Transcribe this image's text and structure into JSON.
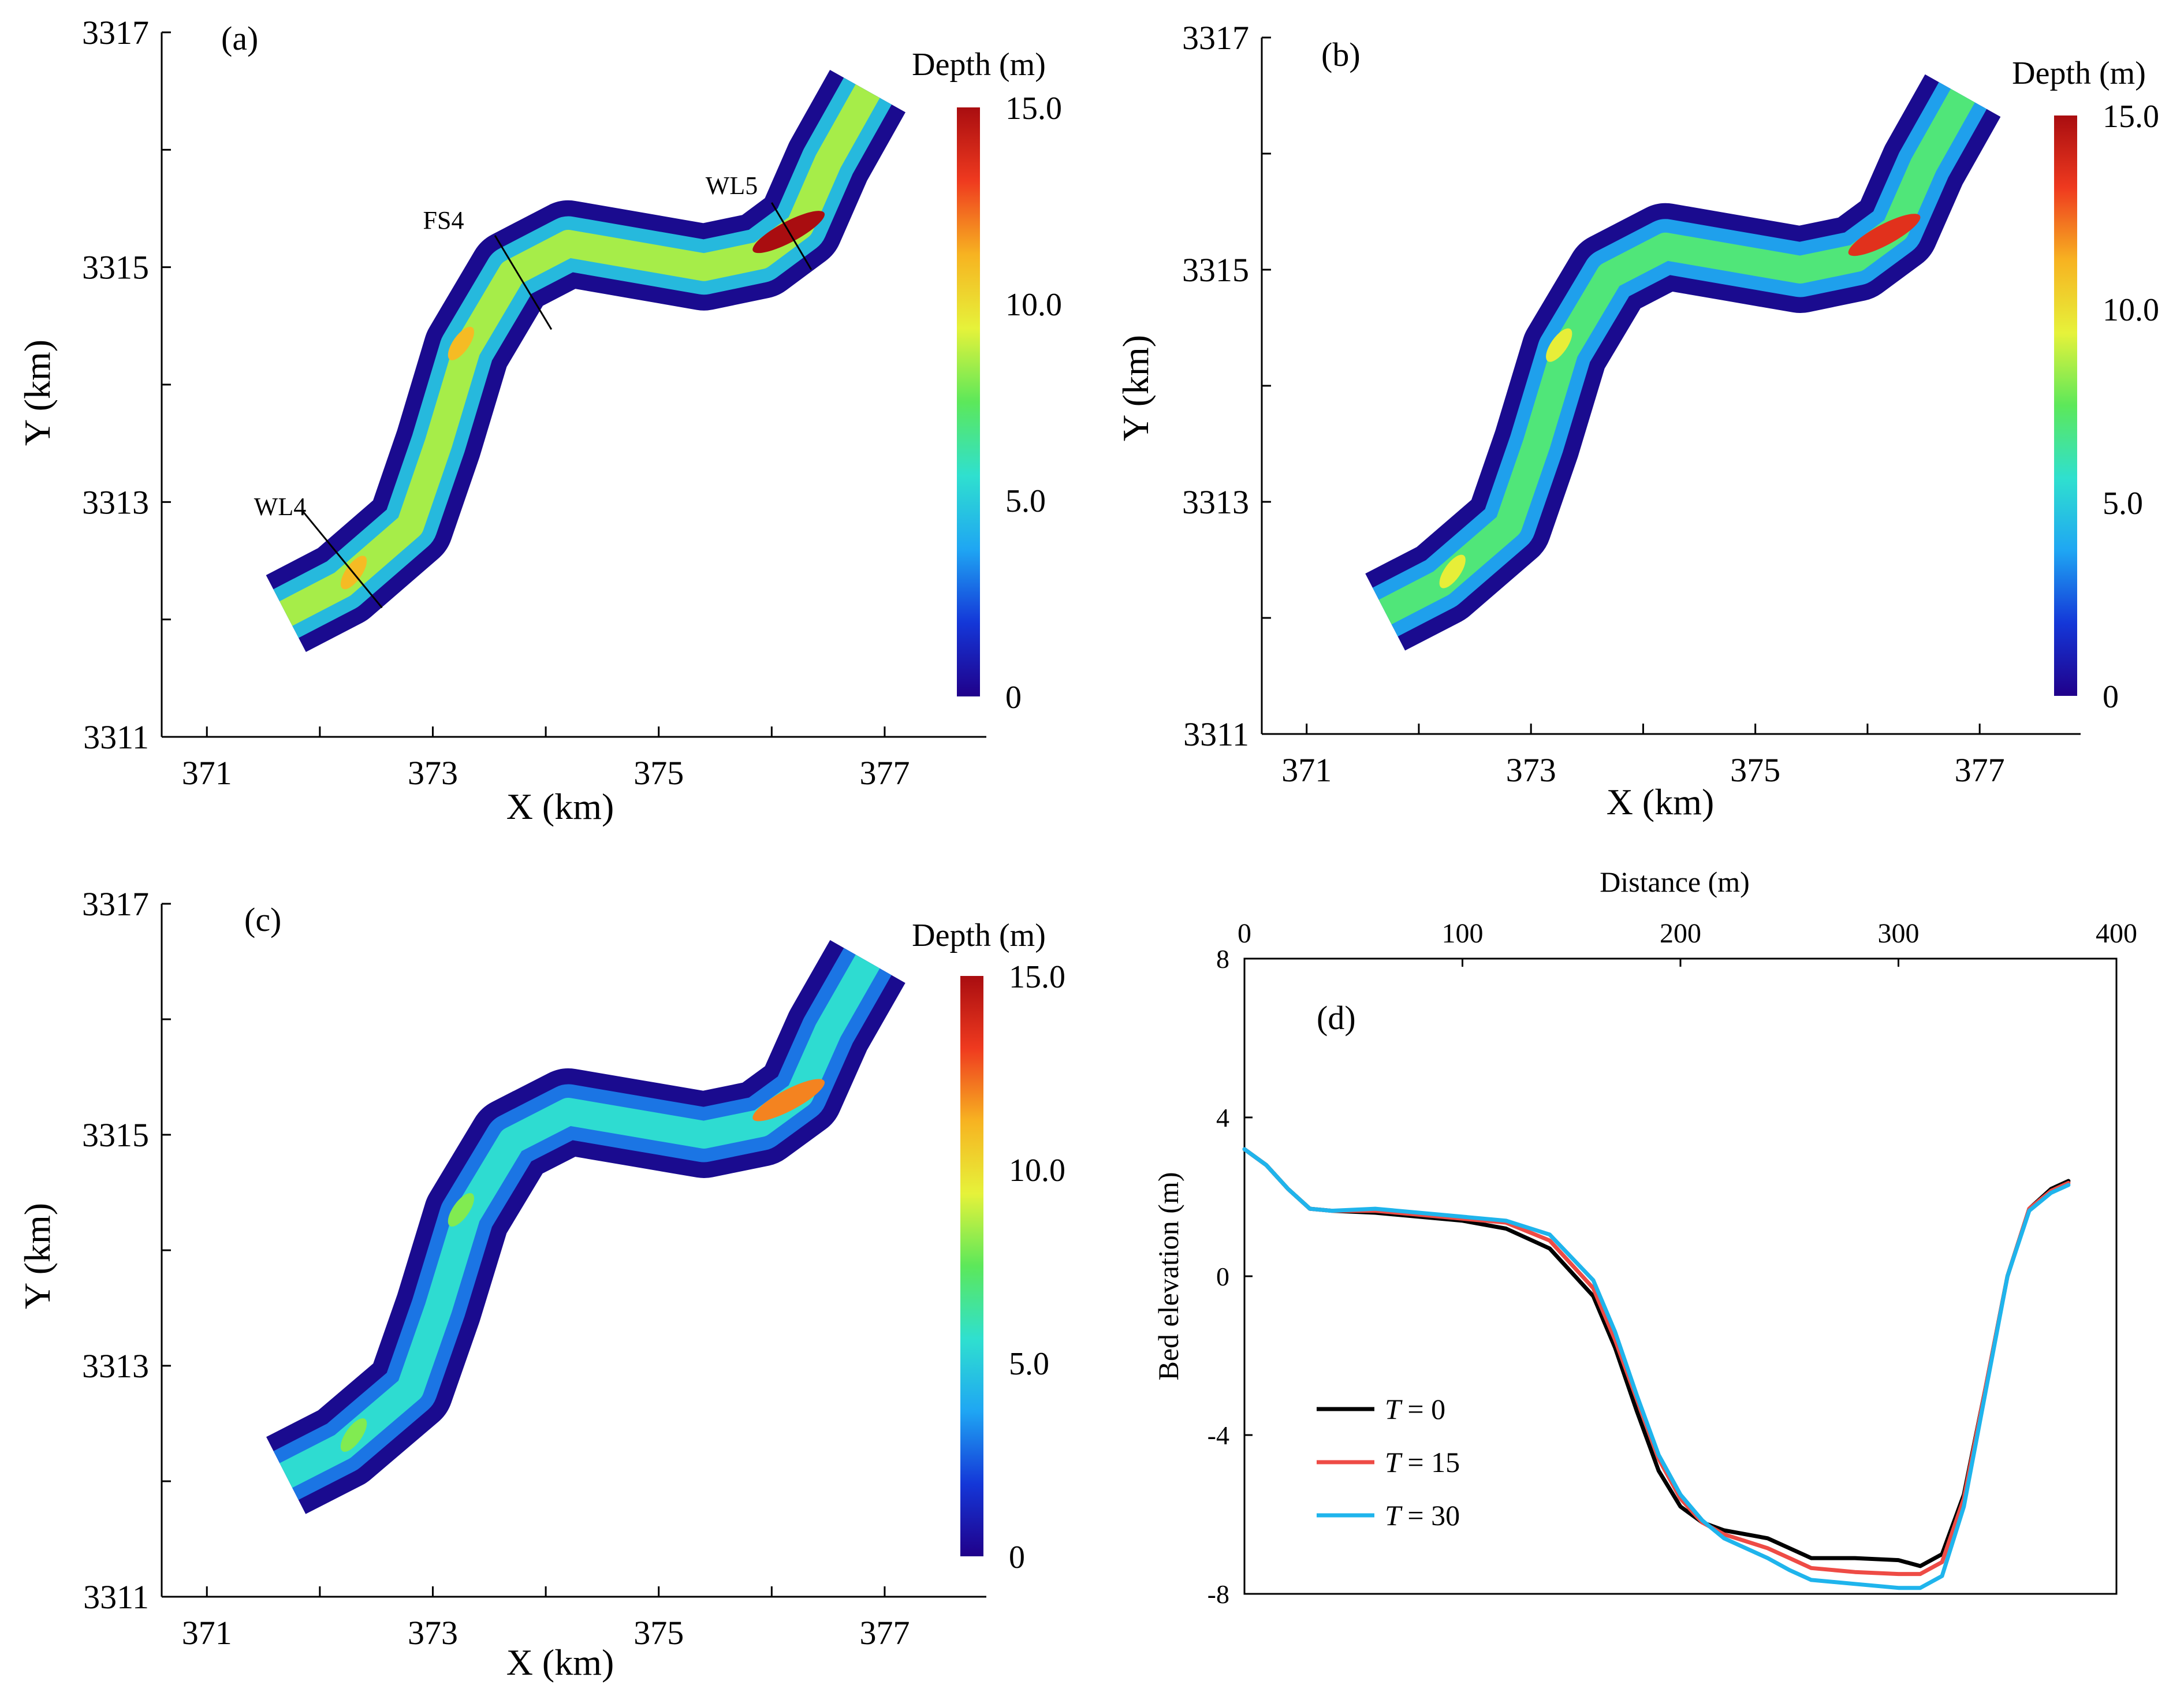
{
  "colors": {
    "depth_colormap": [
      "#20008a",
      "#1437d8",
      "#1fa6f3",
      "#2fe0cf",
      "#5ce85a",
      "#e6f23a",
      "#f7b321",
      "#ef3a1f",
      "#a90d10"
    ],
    "river_bank": "#1a0b8f",
    "series": {
      "T = 0": "#000000",
      "T = 15": "#ee4b45",
      "T = 30": "#1fb4ec"
    }
  },
  "chart_data": [
    {
      "panel": "(a)",
      "type": "heatmap",
      "title": "",
      "xlabel": "X (km)",
      "ylabel": "Y (km)",
      "xlim": [
        370.6,
        377.9
      ],
      "ylim": [
        3311,
        3317
      ],
      "xticks": [
        "371",
        "373",
        "375",
        "377"
      ],
      "yticks": [
        "3311",
        "3313",
        "3315",
        "3317"
      ],
      "colorbar": {
        "title": "Depth (m)",
        "min": 0,
        "max": 15.0,
        "ticks": [
          "0",
          "5.0",
          "10.0",
          "15.0"
        ]
      },
      "mean_depth_level": 8.5,
      "cross_sections": [
        {
          "label": "WL4",
          "x1": 371.85,
          "y1": 3312.92,
          "x2": 372.55,
          "y2": 3312.1
        },
        {
          "label": "FS4",
          "x1": 373.55,
          "y1": 3315.27,
          "x2": 374.05,
          "y2": 3314.47
        },
        {
          "label": "WL5",
          "x1": 376.0,
          "y1": 3315.55,
          "x2": 376.35,
          "y2": 3314.98
        }
      ]
    },
    {
      "panel": "(b)",
      "type": "heatmap",
      "title": "",
      "xlabel": "X (km)",
      "ylabel": "Y (km)",
      "xlim": [
        370.6,
        377.9
      ],
      "ylim": [
        3311,
        3317
      ],
      "xticks": [
        "371",
        "373",
        "375",
        "377"
      ],
      "yticks": [
        "3311",
        "3313",
        "3315",
        "3317"
      ],
      "colorbar": {
        "title": "Depth (m)",
        "min": 0,
        "max": 15.0,
        "ticks": [
          "0",
          "5.0",
          "10.0",
          "15.0"
        ]
      },
      "mean_depth_level": 7.0,
      "cross_sections": []
    },
    {
      "panel": "(c)",
      "type": "heatmap",
      "title": "",
      "xlabel": "X (km)",
      "ylabel": "Y (km)",
      "xlim": [
        370.6,
        377.9
      ],
      "ylim": [
        3311,
        3317
      ],
      "xticks": [
        "371",
        "373",
        "375",
        "377"
      ],
      "yticks": [
        "3311",
        "3313",
        "3315",
        "3317"
      ],
      "colorbar": {
        "title": "Depth (m)",
        "min": 0,
        "max": 15.0,
        "ticks": [
          "0",
          "5.0",
          "10.0",
          "15.0"
        ]
      },
      "mean_depth_level": 5.5,
      "cross_sections": []
    },
    {
      "panel": "(d)",
      "type": "line",
      "title": "",
      "xlabel": "Distance (m)",
      "ylabel": "Bed elevation (m)",
      "xlim": [
        0,
        400
      ],
      "ylim": [
        -8,
        8
      ],
      "xticks": [
        "0",
        "100",
        "200",
        "300",
        "400"
      ],
      "yticks": [
        "-8",
        "-4",
        "0",
        "4",
        "8"
      ],
      "legend_position": "bottom-left",
      "series": [
        {
          "name": "T = 0",
          "legend_label": "= 0",
          "x": [
            0,
            10,
            20,
            30,
            40,
            60,
            80,
            100,
            120,
            140,
            160,
            170,
            180,
            190,
            200,
            210,
            220,
            240,
            250,
            260,
            280,
            300,
            310,
            320,
            330,
            340,
            350,
            360,
            370,
            378
          ],
          "y": [
            3.2,
            2.8,
            2.2,
            1.7,
            1.65,
            1.6,
            1.5,
            1.4,
            1.2,
            0.7,
            -0.5,
            -1.8,
            -3.4,
            -4.9,
            -5.8,
            -6.2,
            -6.4,
            -6.6,
            -6.85,
            -7.1,
            -7.1,
            -7.15,
            -7.3,
            -7.0,
            -5.5,
            -2.8,
            0.0,
            1.7,
            2.2,
            2.4
          ]
        },
        {
          "name": "T = 15",
          "legend_label": "= 15",
          "x": [
            0,
            10,
            20,
            30,
            40,
            60,
            80,
            100,
            120,
            140,
            160,
            170,
            180,
            190,
            200,
            210,
            220,
            240,
            250,
            260,
            280,
            300,
            310,
            320,
            330,
            340,
            350,
            360,
            370,
            378
          ],
          "y": [
            3.2,
            2.8,
            2.2,
            1.7,
            1.65,
            1.65,
            1.55,
            1.45,
            1.35,
            0.9,
            -0.3,
            -1.6,
            -3.1,
            -4.6,
            -5.6,
            -6.2,
            -6.5,
            -6.85,
            -7.1,
            -7.35,
            -7.45,
            -7.5,
            -7.5,
            -7.2,
            -5.6,
            -2.8,
            0.0,
            1.7,
            2.15,
            2.35
          ]
        },
        {
          "name": "T = 30",
          "legend_label": "= 30",
          "x": [
            0,
            10,
            20,
            30,
            40,
            60,
            80,
            100,
            120,
            140,
            160,
            170,
            180,
            190,
            200,
            210,
            220,
            240,
            250,
            260,
            280,
            300,
            310,
            320,
            330,
            340,
            350,
            360,
            370,
            378
          ],
          "y": [
            3.2,
            2.8,
            2.2,
            1.7,
            1.65,
            1.7,
            1.6,
            1.5,
            1.4,
            1.05,
            -0.1,
            -1.4,
            -3.0,
            -4.5,
            -5.5,
            -6.15,
            -6.6,
            -7.1,
            -7.4,
            -7.65,
            -7.75,
            -7.85,
            -7.85,
            -7.55,
            -5.8,
            -2.9,
            0.0,
            1.65,
            2.1,
            2.3
          ]
        }
      ]
    }
  ]
}
